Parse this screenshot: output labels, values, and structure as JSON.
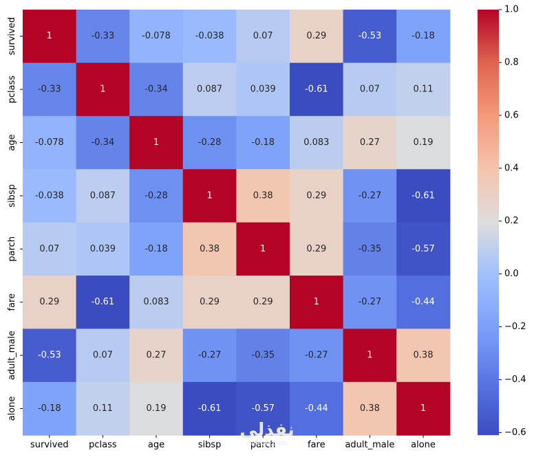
{
  "chart_data": {
    "type": "heatmap",
    "title": "",
    "xlabel": "",
    "ylabel": "",
    "x_labels": [
      "survived",
      "pclass",
      "age",
      "sibsp",
      "parch",
      "fare",
      "adult_male",
      "alone"
    ],
    "y_labels": [
      "survived",
      "pclass",
      "age",
      "sibsp",
      "parch",
      "fare",
      "adult_male",
      "alone"
    ],
    "values": [
      [
        1,
        -0.33,
        -0.078,
        -0.038,
        0.07,
        0.29,
        -0.53,
        -0.18
      ],
      [
        -0.33,
        1,
        -0.34,
        0.087,
        0.039,
        -0.61,
        0.07,
        0.11
      ],
      [
        -0.078,
        -0.34,
        1,
        -0.28,
        -0.18,
        0.083,
        0.27,
        0.19
      ],
      [
        -0.038,
        0.087,
        -0.28,
        1,
        0.38,
        0.29,
        -0.27,
        -0.61
      ],
      [
        0.07,
        0.039,
        -0.18,
        0.38,
        1,
        0.29,
        -0.35,
        -0.57
      ],
      [
        0.29,
        -0.61,
        0.083,
        0.29,
        0.29,
        1,
        -0.27,
        -0.44
      ],
      [
        -0.53,
        0.07,
        0.27,
        -0.27,
        -0.35,
        -0.27,
        1,
        0.38
      ],
      [
        -0.18,
        0.11,
        0.19,
        -0.61,
        -0.57,
        -0.44,
        0.38,
        1
      ]
    ],
    "annotations": [
      [
        "1",
        "-0.33",
        "-0.078",
        "-0.038",
        "0.07",
        "0.29",
        "-0.53",
        "-0.18"
      ],
      [
        "-0.33",
        "1",
        "-0.34",
        "0.087",
        "0.039",
        "-0.61",
        "0.07",
        "0.11"
      ],
      [
        "-0.078",
        "-0.34",
        "1",
        "-0.28",
        "-0.18",
        "0.083",
        "0.27",
        "0.19"
      ],
      [
        "-0.038",
        "0.087",
        "-0.28",
        "1",
        "0.38",
        "0.29",
        "-0.27",
        "-0.61"
      ],
      [
        "0.07",
        "0.039",
        "-0.18",
        "0.38",
        "1",
        "0.29",
        "-0.35",
        "-0.57"
      ],
      [
        "0.29",
        "-0.61",
        "0.083",
        "0.29",
        "0.29",
        "1",
        "-0.27",
        "-0.44"
      ],
      [
        "-0.53",
        "0.07",
        "0.27",
        "-0.27",
        "-0.35",
        "-0.27",
        "1",
        "0.38"
      ],
      [
        "-0.18",
        "0.11",
        "0.19",
        "-0.61",
        "-0.57",
        "-0.44",
        "0.38",
        "1"
      ]
    ],
    "colormap": "coolwarm",
    "vmin": -0.61,
    "vmax": 1.0,
    "colorbar_ticks": [
      1.0,
      0.8,
      0.6,
      0.4,
      0.2,
      0.0,
      -0.2,
      -0.4,
      -0.6
    ],
    "colorbar_tick_labels": [
      "1.0",
      "0.8",
      "0.6",
      "0.4",
      "0.2",
      "0.0",
      "−0.2",
      "−0.4",
      "−0.6"
    ],
    "grid": false
  },
  "watermark": {
    "text": "نفذلي",
    "subtext": "nafezly.com"
  }
}
